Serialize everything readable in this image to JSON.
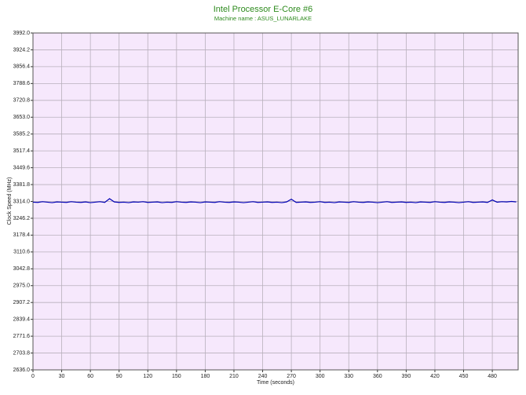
{
  "chart_data": {
    "type": "line",
    "title": "Intel Processor E-Core #6",
    "subtitle": "Machine name : ASUS_LUNARLAKE",
    "x_label": "Time (seconds)",
    "y_label": "Clock Speed (MHz)",
    "xlim": [
      0,
      507
    ],
    "ylim": [
      2636,
      3992
    ],
    "xticks": [
      0,
      30,
      60,
      90,
      120,
      150,
      180,
      210,
      240,
      270,
      300,
      330,
      360,
      390,
      420,
      450,
      480
    ],
    "yticks": [
      {
        "value": 2636,
        "label": "2636.0"
      },
      2703.8,
      2771.6,
      2839.4,
      2907.2,
      {
        "value": 2975,
        "label": "2975.0"
      },
      3042.8,
      3110.6,
      3178.4,
      3246.2,
      {
        "value": 3314,
        "label": "3314.0"
      },
      3381.8,
      3449.6,
      3517.4,
      3585.2,
      {
        "value": 3653,
        "label": "3653.0"
      },
      3720.8,
      3788.6,
      3856.4,
      3924.2,
      {
        "value": 3992,
        "label": "3992.0"
      }
    ],
    "grid": true,
    "title_color": "#2e8b1e",
    "background": "#f6e8fc",
    "x": [
      0,
      5,
      10,
      15,
      20,
      25,
      30,
      35,
      40,
      45,
      50,
      55,
      60,
      65,
      70,
      75,
      80,
      85,
      90,
      95,
      100,
      105,
      110,
      115,
      120,
      125,
      130,
      135,
      140,
      145,
      150,
      155,
      160,
      165,
      170,
      175,
      180,
      185,
      190,
      195,
      200,
      205,
      210,
      215,
      220,
      225,
      230,
      235,
      240,
      245,
      250,
      255,
      260,
      265,
      270,
      275,
      280,
      285,
      290,
      295,
      300,
      305,
      310,
      315,
      320,
      325,
      330,
      335,
      340,
      345,
      350,
      355,
      360,
      365,
      370,
      375,
      380,
      385,
      390,
      395,
      400,
      405,
      410,
      415,
      420,
      425,
      430,
      435,
      440,
      445,
      450,
      455,
      460,
      465,
      470,
      475,
      480,
      485,
      490,
      495,
      500,
      505
    ],
    "series": [
      {
        "name": "E-Core #6",
        "color": "#0000b4",
        "values": [
          3311,
          3310,
          3313,
          3311,
          3309,
          3312,
          3311,
          3310,
          3313,
          3311,
          3310,
          3312,
          3309,
          3311,
          3313,
          3310,
          3325,
          3312,
          3310,
          3311,
          3309,
          3312,
          3311,
          3313,
          3310,
          3311,
          3312,
          3309,
          3311,
          3310,
          3313,
          3311,
          3310,
          3312,
          3311,
          3309,
          3312,
          3311,
          3310,
          3313,
          3311,
          3310,
          3312,
          3311,
          3309,
          3311,
          3313,
          3310,
          3311,
          3312,
          3310,
          3311,
          3309,
          3312,
          3323,
          3310,
          3311,
          3312,
          3310,
          3311,
          3313,
          3310,
          3311,
          3309,
          3312,
          3311,
          3310,
          3313,
          3311,
          3310,
          3312,
          3311,
          3309,
          3311,
          3313,
          3310,
          3311,
          3312,
          3310,
          3311,
          3309,
          3312,
          3311,
          3310,
          3313,
          3311,
          3310,
          3312,
          3311,
          3309,
          3311,
          3313,
          3310,
          3311,
          3312,
          3310,
          3320,
          3311,
          3313,
          3312,
          3314,
          3312
        ]
      }
    ]
  }
}
